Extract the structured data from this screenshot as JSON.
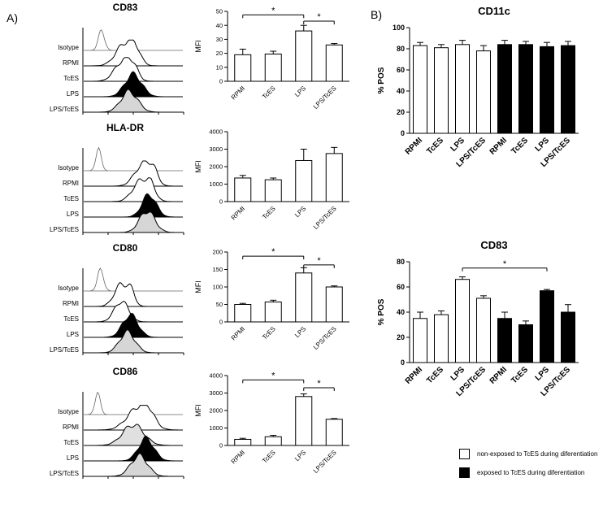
{
  "panels": {
    "a_label": "A)",
    "b_label": "B)"
  },
  "histogram_rows": [
    "Isotype",
    "RPMI",
    "TcES",
    "LPS",
    "LPS/TcES"
  ],
  "markers": [
    {
      "name": "CD83",
      "traces": [
        {
          "fill": "none",
          "p": 0.18,
          "w": 0.045,
          "a": 0.8
        },
        {
          "fill": "none",
          "p": 0.42,
          "w": 0.13,
          "a": 0.92,
          "b": 1
        },
        {
          "fill": "none",
          "p": 0.4,
          "w": 0.12,
          "a": 0.85,
          "b": 1
        },
        {
          "fill": "#000000",
          "p": 0.5,
          "w": 0.12,
          "a": 0.92
        },
        {
          "fill": "#d6d6d6",
          "p": 0.46,
          "w": 0.12,
          "a": 0.85
        }
      ]
    },
    {
      "name": "HLA-DR",
      "traces": [
        {
          "fill": "none",
          "p": 0.15,
          "w": 0.04,
          "a": 0.85
        },
        {
          "fill": "none",
          "p": 0.6,
          "w": 0.12,
          "a": 0.9,
          "b": 1
        },
        {
          "fill": "none",
          "p": 0.58,
          "w": 0.12,
          "a": 0.85,
          "b": 1
        },
        {
          "fill": "#000000",
          "p": 0.66,
          "w": 0.1,
          "a": 0.92
        },
        {
          "fill": "#d6d6d6",
          "p": 0.64,
          "w": 0.11,
          "a": 0.88
        }
      ]
    },
    {
      "name": "CD80",
      "traces": [
        {
          "fill": "none",
          "p": 0.17,
          "w": 0.045,
          "a": 0.85
        },
        {
          "fill": "none",
          "p": 0.38,
          "w": 0.1,
          "a": 0.9,
          "b": 1
        },
        {
          "fill": "none",
          "p": 0.38,
          "w": 0.1,
          "a": 0.85
        },
        {
          "fill": "#000000",
          "p": 0.47,
          "w": 0.11,
          "a": 0.92
        },
        {
          "fill": "#d6d6d6",
          "p": 0.44,
          "w": 0.11,
          "a": 0.85
        }
      ]
    },
    {
      "name": "CD86",
      "traces": [
        {
          "fill": "none",
          "p": 0.14,
          "w": 0.04,
          "a": 0.85
        },
        {
          "fill": "none",
          "p": 0.55,
          "w": 0.16,
          "a": 0.88,
          "b": 1
        },
        {
          "fill": "#e0e0e0",
          "p": 0.5,
          "w": 0.15,
          "a": 0.85
        },
        {
          "fill": "#000000",
          "p": 0.63,
          "w": 0.11,
          "a": 0.92
        },
        {
          "fill": "#d6d6d6",
          "p": 0.56,
          "w": 0.12,
          "a": 0.85
        }
      ]
    }
  ],
  "chart_data": [
    {
      "id": "cd83-mfi",
      "type": "bar",
      "title": "CD83",
      "xlabel": "",
      "ylabel": "MFI",
      "ylim": [
        0,
        50
      ],
      "yticks": [
        0,
        10,
        20,
        30,
        40,
        50
      ],
      "categories": [
        "RPMI",
        "TcES",
        "LPS",
        "LPS/TcES"
      ],
      "values": [
        19,
        19.5,
        36,
        26
      ],
      "errors": [
        4,
        2,
        4,
        1
      ],
      "significance": [
        {
          "from": 0,
          "to": 2,
          "y": 47.5,
          "label": "*"
        },
        {
          "from": 2,
          "to": 3,
          "y": 43,
          "label": "*"
        }
      ]
    },
    {
      "id": "hladr-mfi",
      "type": "bar",
      "title": "HLA-DR",
      "xlabel": "",
      "ylabel": "MFI",
      "ylim": [
        0,
        4000
      ],
      "yticks": [
        0,
        1000,
        2000,
        3000,
        4000
      ],
      "categories": [
        "RPMI",
        "TcES",
        "LPS",
        "LPS/TcES"
      ],
      "values": [
        1350,
        1250,
        2350,
        2750
      ],
      "errors": [
        150,
        100,
        650,
        350
      ],
      "significance": []
    },
    {
      "id": "cd80-mfi",
      "type": "bar",
      "title": "CD80",
      "xlabel": "",
      "ylabel": "MFI",
      "ylim": [
        0,
        200
      ],
      "yticks": [
        0,
        50,
        100,
        150,
        200
      ],
      "categories": [
        "RPMI",
        "TcES",
        "LPS",
        "LPS/TcES"
      ],
      "values": [
        50,
        57,
        140,
        100
      ],
      "errors": [
        3,
        5,
        15,
        3
      ],
      "significance": [
        {
          "from": 0,
          "to": 2,
          "y": 188,
          "label": "*"
        },
        {
          "from": 2,
          "to": 3,
          "y": 163,
          "label": "*"
        }
      ]
    },
    {
      "id": "cd86-mfi",
      "type": "bar",
      "title": "CD86",
      "xlabel": "",
      "ylabel": "MFI",
      "ylim": [
        0,
        4000
      ],
      "yticks": [
        0,
        1000,
        2000,
        3000,
        4000
      ],
      "categories": [
        "RPMI",
        "TcES",
        "LPS",
        "LPS/TcES"
      ],
      "values": [
        350,
        500,
        2800,
        1500
      ],
      "errors": [
        60,
        80,
        150,
        40
      ],
      "significance": [
        {
          "from": 0,
          "to": 2,
          "y": 3750,
          "label": "*"
        },
        {
          "from": 2,
          "to": 3,
          "y": 3300,
          "label": "*"
        }
      ]
    },
    {
      "id": "cd11c-pos",
      "type": "bar",
      "title": "CD11c",
      "xlabel": "",
      "ylabel": "% POS",
      "ylim": [
        0,
        100
      ],
      "yticks": [
        0,
        20,
        40,
        60,
        80,
        100
      ],
      "categories": [
        "RPMI",
        "TcES",
        "LPS",
        "LPS/TcES",
        "RPMI",
        "TcES",
        "LPS",
        "LPS/TcES"
      ],
      "values": [
        83,
        81,
        84,
        78,
        84,
        84,
        82,
        83
      ],
      "errors": [
        3,
        3,
        4,
        5,
        4,
        3,
        4,
        4
      ],
      "bar_fills": [
        "white",
        "white",
        "white",
        "white",
        "black",
        "black",
        "black",
        "black"
      ],
      "significance": []
    },
    {
      "id": "cd83-pos",
      "type": "bar",
      "title": "CD83",
      "xlabel": "",
      "ylabel": "% POS",
      "ylim": [
        0,
        80
      ],
      "yticks": [
        0,
        20,
        40,
        60,
        80
      ],
      "categories": [
        "RPMI",
        "TcES",
        "LPS",
        "LPS/TcES",
        "RPMI",
        "TcES",
        "LPS",
        "LPS/TcES"
      ],
      "values": [
        35,
        38,
        66,
        51,
        35,
        30,
        57,
        40
      ],
      "errors": [
        5,
        3,
        2,
        2,
        5,
        3,
        1,
        6
      ],
      "bar_fills": [
        "white",
        "white",
        "white",
        "white",
        "black",
        "black",
        "black",
        "black"
      ],
      "significance": [
        {
          "from": 2,
          "to": 6,
          "y": 75,
          "label": "*"
        }
      ]
    }
  ],
  "legend": {
    "items": [
      {
        "label": "non-exposed to TcES during diferentiation",
        "color": "#ffffff"
      },
      {
        "label": "exposed to TcES during diferentiation",
        "color": "#000000"
      }
    ]
  }
}
